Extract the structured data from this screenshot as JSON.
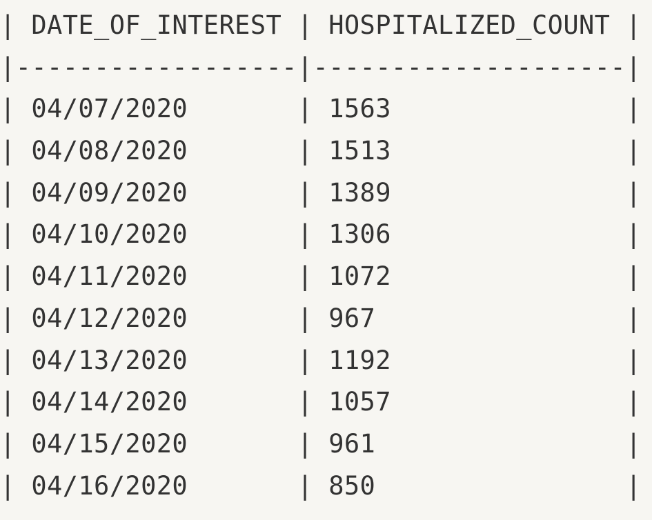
{
  "table": {
    "columns": [
      "DATE_OF_INTEREST",
      "HOSPITALIZED_COUNT"
    ],
    "rows": [
      [
        "04/07/2020",
        "1563"
      ],
      [
        "04/08/2020",
        "1513"
      ],
      [
        "04/09/2020",
        "1389"
      ],
      [
        "04/10/2020",
        "1306"
      ],
      [
        "04/11/2020",
        "1072"
      ],
      [
        "04/12/2020",
        "967"
      ],
      [
        "04/13/2020",
        "1192"
      ],
      [
        "04/14/2020",
        "1057"
      ],
      [
        "04/15/2020",
        "961"
      ],
      [
        "04/16/2020",
        "850"
      ]
    ]
  },
  "lines": {
    "header": "| DATE_OF_INTEREST | HOSPITALIZED_COUNT |",
    "separator": "|------------------|--------------------|",
    "rows": [
      "| 04/07/2020       | 1563               |",
      "| 04/08/2020       | 1513               |",
      "| 04/09/2020       | 1389               |",
      "| 04/10/2020       | 1306               |",
      "| 04/11/2020       | 1072               |",
      "| 04/12/2020       | 967                |",
      "| 04/13/2020       | 1192               |",
      "| 04/14/2020       | 1057               |",
      "| 04/15/2020       | 961                |",
      "| 04/16/2020       | 850                |"
    ]
  }
}
